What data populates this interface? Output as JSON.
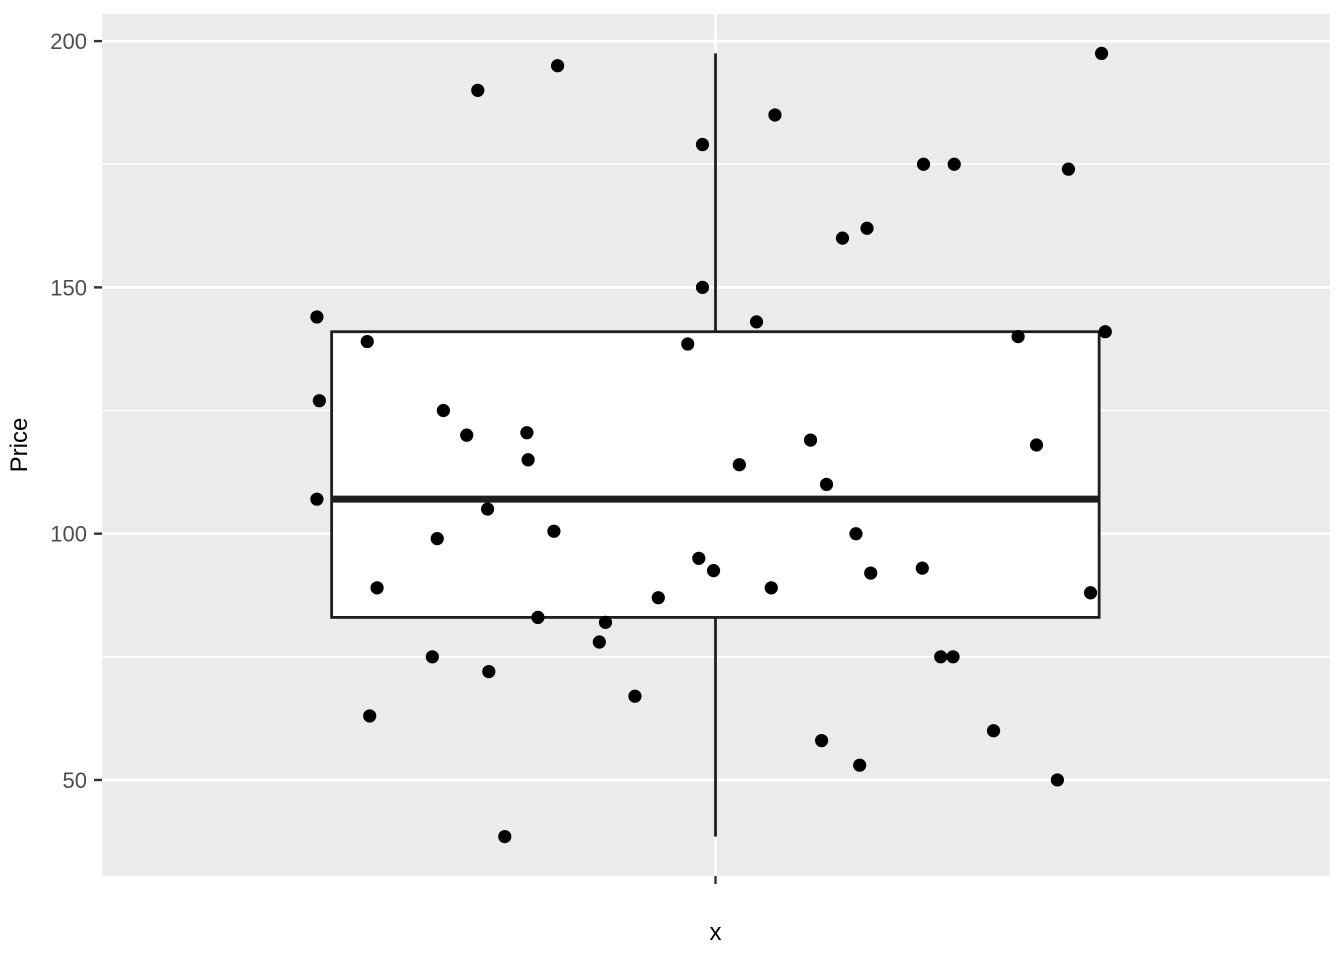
{
  "figure": {
    "background": "#FFFFFF",
    "panel_background": "#EBEBEB",
    "grid_color": "#FFFFFF",
    "box_fill": "#FFFFFF",
    "box_stroke": "#1F1F1F",
    "point_color": "#000000",
    "tick_color": "#333333",
    "tick_label_color": "#4D4D4D",
    "axis_title_color": "#000000"
  },
  "chart_data": {
    "type": "boxplot",
    "title": "",
    "xlabel": "x",
    "ylabel": "Price",
    "categories": [
      "x"
    ],
    "ylim": [
      30.5,
      205.5
    ],
    "y_major_ticks": [
      50,
      100,
      150,
      200
    ],
    "y_major_tick_labels": [
      "50",
      "100",
      "150",
      "200"
    ],
    "y_minor_gridlines": [
      75,
      125,
      175
    ],
    "grid": "on",
    "legend": "none",
    "box": {
      "category": "x",
      "whisker_min": 38.5,
      "q1": 83,
      "median": 107,
      "q3": 141,
      "whisker_max": 197.5
    },
    "jitter_points_xfrac_price": [
      [
        0.306,
        190
      ],
      [
        0.371,
        195
      ],
      [
        0.814,
        197.5
      ],
      [
        0.489,
        179
      ],
      [
        0.548,
        185
      ],
      [
        0.669,
        175
      ],
      [
        0.694,
        175
      ],
      [
        0.787,
        174
      ],
      [
        0.603,
        160
      ],
      [
        0.623,
        162
      ],
      [
        0.489,
        150
      ],
      [
        0.533,
        143
      ],
      [
        0.175,
        144
      ],
      [
        0.216,
        139
      ],
      [
        0.477,
        138.5
      ],
      [
        0.746,
        140
      ],
      [
        0.817,
        141
      ],
      [
        0.177,
        127
      ],
      [
        0.278,
        125
      ],
      [
        0.297,
        120
      ],
      [
        0.346,
        120.5
      ],
      [
        0.347,
        115
      ],
      [
        0.519,
        114
      ],
      [
        0.577,
        119
      ],
      [
        0.59,
        110
      ],
      [
        0.761,
        118
      ],
      [
        0.175,
        107
      ],
      [
        0.314,
        105
      ],
      [
        0.368,
        100.5
      ],
      [
        0.614,
        100
      ],
      [
        0.273,
        99
      ],
      [
        0.486,
        95
      ],
      [
        0.498,
        92.5
      ],
      [
        0.626,
        92
      ],
      [
        0.668,
        93
      ],
      [
        0.224,
        89
      ],
      [
        0.545,
        89
      ],
      [
        0.453,
        87
      ],
      [
        0.805,
        88
      ],
      [
        0.355,
        83
      ],
      [
        0.41,
        82
      ],
      [
        0.405,
        78
      ],
      [
        0.269,
        75
      ],
      [
        0.315,
        72
      ],
      [
        0.683,
        75
      ],
      [
        0.693,
        75
      ],
      [
        0.434,
        67
      ],
      [
        0.218,
        63
      ],
      [
        0.726,
        60
      ],
      [
        0.586,
        58
      ],
      [
        0.617,
        53
      ],
      [
        0.778,
        50
      ],
      [
        0.328,
        38.5
      ]
    ]
  }
}
